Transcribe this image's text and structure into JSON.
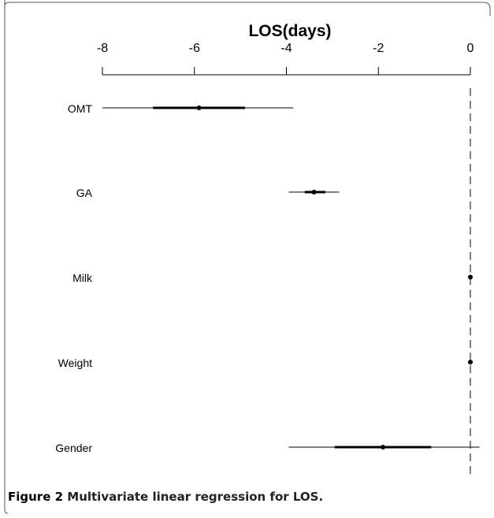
{
  "chart_data": {
    "type": "forest",
    "title": "LOS(days)",
    "xlim": [
      -8,
      0
    ],
    "x_ticks": [
      "-8",
      "-6",
      "-4",
      "-2",
      "0"
    ],
    "reference_line": 0,
    "grid": false,
    "categories": [
      "OMT",
      "GA",
      "Milk",
      "Weight",
      "Gender"
    ],
    "estimates": [
      -5.9,
      -3.4,
      0.0,
      0.0,
      -1.9
    ],
    "inner_interval": [
      [
        -6.9,
        -4.9
      ],
      [
        -3.6,
        -3.15
      ],
      [
        0.0,
        0.0
      ],
      [
        0.0,
        0.0
      ],
      [
        -2.95,
        -0.85
      ]
    ],
    "outer_interval": [
      [
        -8.0,
        -3.85
      ],
      [
        -3.95,
        -2.85
      ],
      [
        0.0,
        0.0
      ],
      [
        0.0,
        0.0
      ],
      [
        -3.95,
        0.2
      ]
    ],
    "colors": {
      "line": "#000000",
      "frame": "#555555"
    }
  },
  "caption": {
    "figure_number": "Figure 2",
    "text": " Multivariate linear regression for LOS."
  }
}
